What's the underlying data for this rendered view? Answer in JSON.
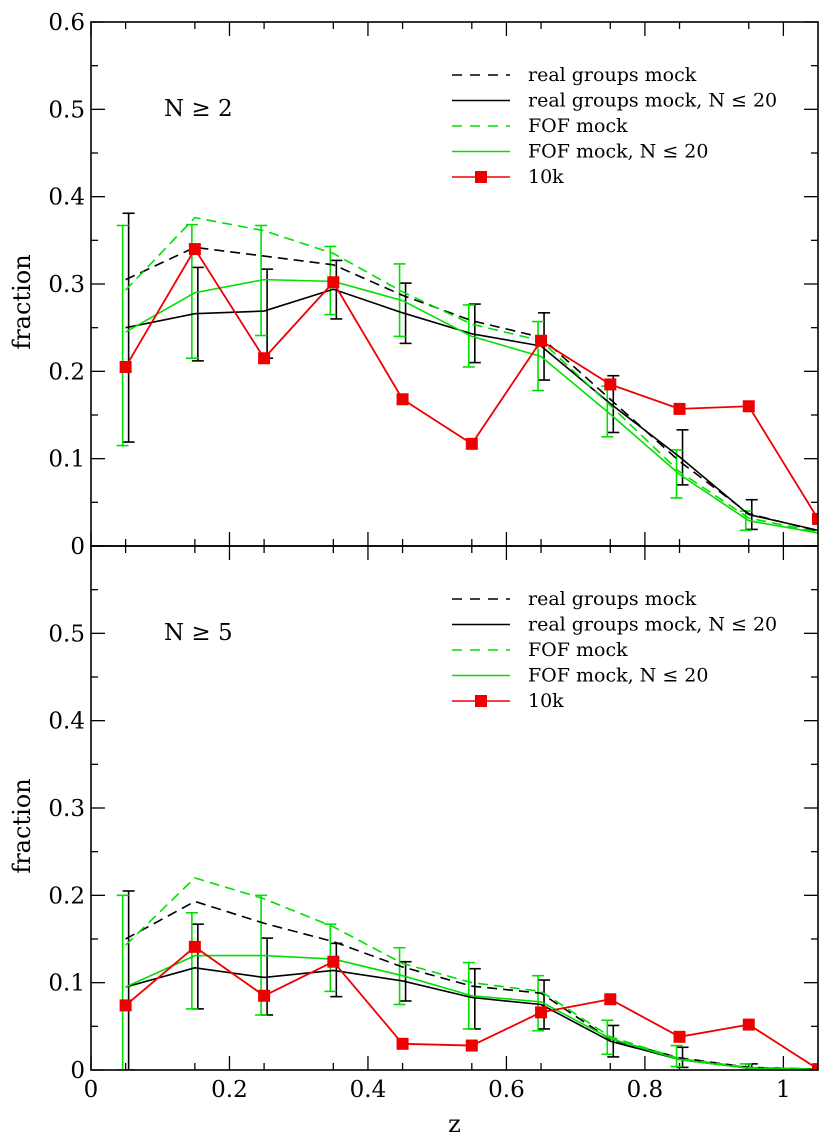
{
  "chart_data": [
    {
      "type": "line",
      "title": "",
      "panel_label": "N ≥ 2",
      "xlabel": "",
      "ylabel": "fraction",
      "xlim": [
        0,
        1.05
      ],
      "ylim": [
        0,
        0.6
      ],
      "x_ticks": [
        0,
        0.2,
        0.4,
        0.6,
        0.8,
        1
      ],
      "x_tick_labels": [
        "",
        "",
        "",
        "",
        "",
        ""
      ],
      "y_ticks": [
        0,
        0.1,
        0.2,
        0.3,
        0.4,
        0.5,
        0.6
      ],
      "y_tick_labels": [
        "0",
        "0.1",
        "0.2",
        "0.3",
        "0.4",
        "0.5",
        "0.6"
      ],
      "legend_position": "top-right",
      "x": [
        0.05,
        0.15,
        0.25,
        0.35,
        0.45,
        0.55,
        0.65,
        0.75,
        0.85,
        0.95,
        1.05
      ],
      "series": [
        {
          "name": "real groups mock",
          "color": "#000000",
          "dash": true,
          "markers": false,
          "values": [
            0.305,
            0.342,
            0.332,
            0.322,
            0.287,
            0.258,
            0.239,
            0.168,
            0.097,
            0.037,
            0.017
          ]
        },
        {
          "name": "real groups mock, N ≤ 20",
          "color": "#000000",
          "dash": false,
          "markers": false,
          "values": [
            0.25,
            0.266,
            0.269,
            0.294,
            0.267,
            0.243,
            0.229,
            0.163,
            0.102,
            0.036,
            0.018
          ],
          "errors": [
            [
              0.119,
              0.381
            ],
            [
              0.212,
              0.319
            ],
            [
              0.215,
              0.317
            ],
            [
              0.26,
              0.327
            ],
            [
              0.232,
              0.301
            ],
            [
              0.21,
              0.277
            ],
            [
              0.19,
              0.267
            ],
            [
              0.13,
              0.195
            ],
            [
              0.07,
              0.133
            ],
            [
              0.019,
              0.053
            ],
            null
          ]
        },
        {
          "name": "FOF mock",
          "color": "#00e000",
          "dash": true,
          "markers": false,
          "values": [
            0.293,
            0.376,
            0.361,
            0.335,
            0.291,
            0.254,
            0.235,
            0.161,
            0.085,
            0.032,
            0.016
          ]
        },
        {
          "name": "FOF mock, N ≤ 20",
          "color": "#00e000",
          "dash": false,
          "markers": false,
          "values": [
            0.245,
            0.29,
            0.305,
            0.303,
            0.281,
            0.24,
            0.217,
            0.151,
            0.082,
            0.029,
            0.015
          ],
          "errors": [
            [
              0.115,
              0.367
            ],
            [
              0.215,
              0.368
            ],
            [
              0.241,
              0.367
            ],
            [
              0.265,
              0.343
            ],
            [
              0.24,
              0.323
            ],
            [
              0.205,
              0.276
            ],
            [
              0.178,
              0.257
            ],
            [
              0.125,
              0.183
            ],
            [
              0.055,
              0.11
            ],
            [
              0.018,
              0.04
            ],
            null
          ]
        },
        {
          "name": "10k",
          "color": "#ee0000",
          "dash": false,
          "markers": true,
          "values": [
            0.205,
            0.34,
            0.215,
            0.302,
            0.168,
            0.117,
            0.235,
            0.185,
            0.157,
            0.16,
            0.031
          ]
        }
      ]
    },
    {
      "type": "line",
      "title": "",
      "panel_label": "N ≥ 5",
      "xlabel": "z",
      "ylabel": "fraction",
      "xlim": [
        0,
        1.05
      ],
      "ylim": [
        0,
        0.6
      ],
      "x_ticks": [
        0,
        0.2,
        0.4,
        0.6,
        0.8,
        1
      ],
      "x_tick_labels": [
        "0",
        "0.2",
        "0.4",
        "0.6",
        "0.8",
        "1"
      ],
      "y_ticks": [
        0,
        0.1,
        0.2,
        0.3,
        0.4,
        0.5,
        0.6
      ],
      "y_tick_labels": [
        "0",
        "0.1",
        "0.2",
        "0.3",
        "0.4",
        "0.5",
        ""
      ],
      "legend_position": "top-right",
      "x": [
        0.05,
        0.15,
        0.25,
        0.35,
        0.45,
        0.55,
        0.65,
        0.75,
        0.85,
        0.95,
        1.05
      ],
      "series": [
        {
          "name": "real groups mock",
          "color": "#000000",
          "dash": true,
          "markers": false,
          "values": [
            0.15,
            0.193,
            0.168,
            0.147,
            0.118,
            0.096,
            0.088,
            0.035,
            0.014,
            0.003,
            0.001
          ]
        },
        {
          "name": "real groups mock, N ≤ 20",
          "color": "#000000",
          "dash": false,
          "markers": false,
          "values": [
            0.095,
            0.117,
            0.106,
            0.114,
            0.102,
            0.083,
            0.075,
            0.033,
            0.012,
            0.002,
            0.001
          ],
          "errors": [
            [
              0.0,
              0.205
            ],
            [
              0.07,
              0.167
            ],
            [
              0.063,
              0.151
            ],
            [
              0.084,
              0.145
            ],
            [
              0.079,
              0.124
            ],
            [
              0.047,
              0.116
            ],
            [
              0.047,
              0.103
            ],
            [
              0.015,
              0.051
            ],
            [
              0.003,
              0.026
            ],
            [
              0.0,
              0.007
            ],
            null
          ]
        },
        {
          "name": "FOF mock",
          "color": "#00e000",
          "dash": true,
          "markers": false,
          "values": [
            0.143,
            0.22,
            0.196,
            0.164,
            0.122,
            0.1,
            0.09,
            0.038,
            0.013,
            0.003,
            0.001
          ]
        },
        {
          "name": "FOF mock, N ≤ 20",
          "color": "#00e000",
          "dash": false,
          "markers": false,
          "values": [
            0.095,
            0.131,
            0.131,
            0.127,
            0.108,
            0.085,
            0.078,
            0.036,
            0.012,
            0.002,
            0.001
          ],
          "errors": [
            [
              0.0,
              0.2
            ],
            [
              0.07,
              0.18
            ],
            [
              0.063,
              0.2
            ],
            [
              0.09,
              0.167
            ],
            [
              0.075,
              0.14
            ],
            [
              0.047,
              0.123
            ],
            [
              0.045,
              0.108
            ],
            [
              0.018,
              0.057
            ],
            [
              0.004,
              0.028
            ],
            [
              0.0,
              0.007
            ],
            null
          ]
        },
        {
          "name": "10k",
          "color": "#ee0000",
          "dash": false,
          "markers": true,
          "values": [
            0.074,
            0.141,
            0.085,
            0.124,
            0.03,
            0.028,
            0.066,
            0.081,
            0.038,
            0.052,
            0.001
          ]
        }
      ]
    }
  ]
}
